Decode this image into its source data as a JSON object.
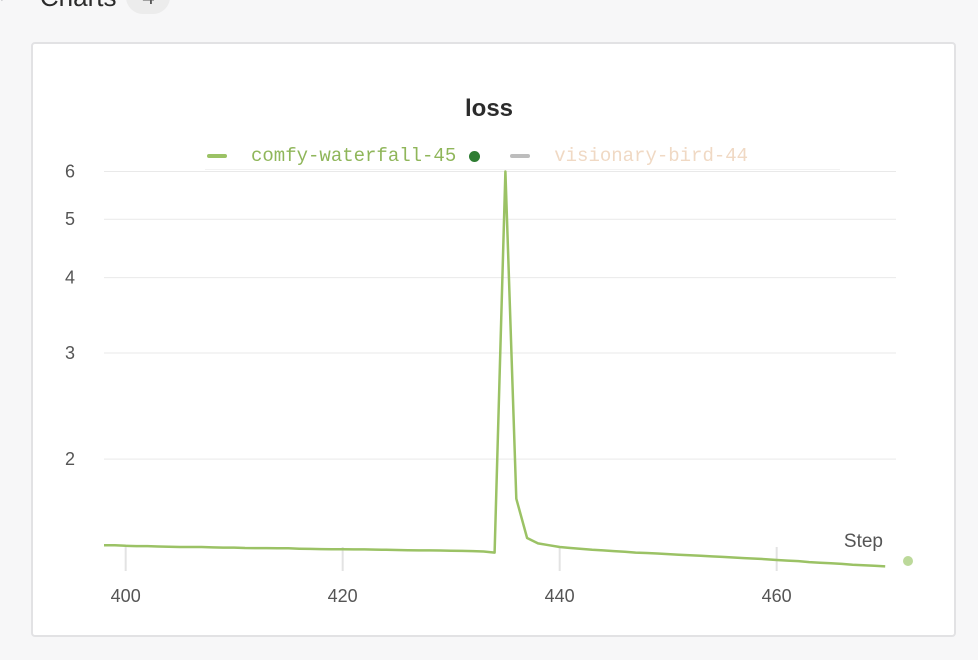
{
  "section": {
    "title": "Charts",
    "count": "4",
    "chevron": "chevron-down-icon"
  },
  "colors": {
    "active_run": "#9bc265",
    "active_run_dot": "#2e7d32",
    "inactive_swatch": "#bdbdbd",
    "inactive_label": "#f0d9c4",
    "grid": "#e9e9e9"
  },
  "chart_data": {
    "type": "line",
    "title": "loss",
    "xlabel": "Step",
    "ylabel": "",
    "y_scale": "log",
    "xlim": [
      398,
      471
    ],
    "ylim": [
      1.3,
      6.15
    ],
    "x_ticks": [
      400,
      420,
      440,
      460
    ],
    "y_ticks": [
      2,
      3,
      4,
      5,
      6
    ],
    "grid": true,
    "legend_position": "top-center",
    "series": [
      {
        "name": "comfy-waterfall-45",
        "visible": true,
        "x": [
          398,
          399,
          400,
          401,
          402,
          403,
          404,
          405,
          406,
          407,
          408,
          409,
          410,
          411,
          412,
          413,
          414,
          415,
          416,
          417,
          418,
          419,
          420,
          421,
          422,
          423,
          424,
          425,
          426,
          427,
          428,
          429,
          430,
          431,
          432,
          433,
          434,
          435,
          436,
          437,
          438,
          439,
          440,
          441,
          442,
          443,
          444,
          445,
          446,
          447,
          448,
          449,
          450,
          451,
          452,
          453,
          454,
          455,
          456,
          457,
          458,
          459,
          460,
          461,
          462,
          463,
          464,
          465,
          466,
          467,
          468,
          469,
          470
        ],
        "values": [
          1.44,
          1.44,
          1.437,
          1.435,
          1.435,
          1.433,
          1.432,
          1.43,
          1.43,
          1.43,
          1.428,
          1.427,
          1.427,
          1.425,
          1.424,
          1.424,
          1.423,
          1.423,
          1.421,
          1.42,
          1.419,
          1.418,
          1.418,
          1.417,
          1.417,
          1.416,
          1.415,
          1.414,
          1.413,
          1.412,
          1.412,
          1.411,
          1.41,
          1.409,
          1.408,
          1.406,
          1.4,
          6.0,
          1.72,
          1.48,
          1.45,
          1.44,
          1.43,
          1.425,
          1.42,
          1.415,
          1.412,
          1.408,
          1.404,
          1.4,
          1.398,
          1.395,
          1.392,
          1.389,
          1.386,
          1.383,
          1.38,
          1.377,
          1.374,
          1.371,
          1.368,
          1.365,
          1.361,
          1.358,
          1.355,
          1.35,
          1.347,
          1.344,
          1.341,
          1.337,
          1.334,
          1.331,
          1.328
        ]
      },
      {
        "name": "visionary-bird-44",
        "visible": false,
        "values": []
      }
    ]
  }
}
